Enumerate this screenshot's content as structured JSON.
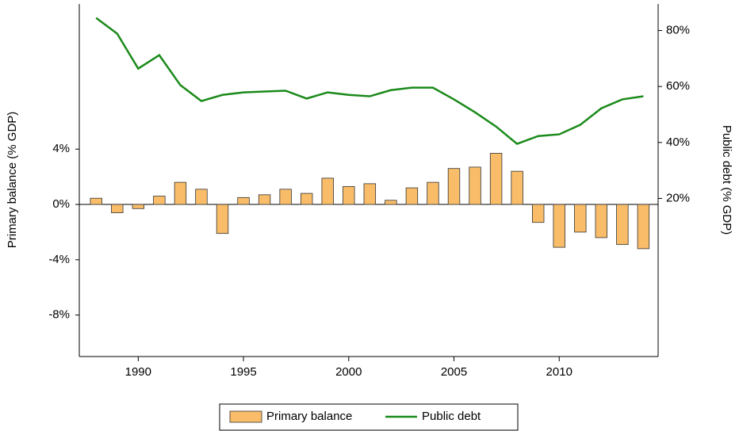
{
  "chart_data": {
    "type": "bar",
    "x": [
      1988,
      1989,
      1990,
      1991,
      1992,
      1993,
      1994,
      1995,
      1996,
      1997,
      1998,
      1999,
      2000,
      2001,
      2002,
      2003,
      2004,
      2005,
      2006,
      2007,
      2008,
      2009,
      2010,
      2011,
      2012,
      2013,
      2014
    ],
    "series": [
      {
        "name": "Primary balance",
        "type": "bar",
        "color": "#f9bd6a",
        "values": [
          0.45,
          -0.6,
          -0.3,
          0.6,
          1.6,
          1.1,
          -2.1,
          0.5,
          0.7,
          1.1,
          0.8,
          1.9,
          1.3,
          1.5,
          0.3,
          1.2,
          1.6,
          2.6,
          2.7,
          3.7,
          2.4,
          -1.3,
          -3.1,
          -2.0,
          -2.4,
          -2.9,
          -3.2
        ]
      },
      {
        "name": "Public debt",
        "type": "line",
        "axis": "y2",
        "color": "#1a8a1a",
        "values": [
          84.5,
          78.9,
          66.4,
          71.2,
          60.5,
          54.8,
          57.0,
          57.9,
          58.2,
          58.5,
          55.7,
          57.9,
          57.0,
          56.5,
          58.7,
          59.6,
          59.6,
          55.4,
          50.8,
          45.7,
          39.5,
          42.3,
          42.9,
          46.3,
          52.2,
          55.4,
          56.5
        ]
      }
    ],
    "xlim": [
      1987.2,
      2014.7
    ],
    "xticks": [
      1990,
      1995,
      2000,
      2005,
      2010
    ],
    "ylim": [
      -11,
      14.5
    ],
    "yticks": [
      {
        "value": 4,
        "label": "4%"
      },
      {
        "value": 0,
        "label": "0%"
      },
      {
        "value": -4,
        "label": "-4%"
      },
      {
        "value": -8,
        "label": "-8%"
      }
    ],
    "y2lim": [
      -36.5,
      89.5
    ],
    "y2ticks": [
      {
        "value": 20,
        "label": "20%"
      },
      {
        "value": 40,
        "label": "40%"
      },
      {
        "value": 60,
        "label": "60%"
      },
      {
        "value": 80,
        "label": "80%"
      }
    ],
    "ylabel": "Primary balance (% GDP)",
    "y2label": "Public debt (% GDP)",
    "legend": "bottom"
  }
}
